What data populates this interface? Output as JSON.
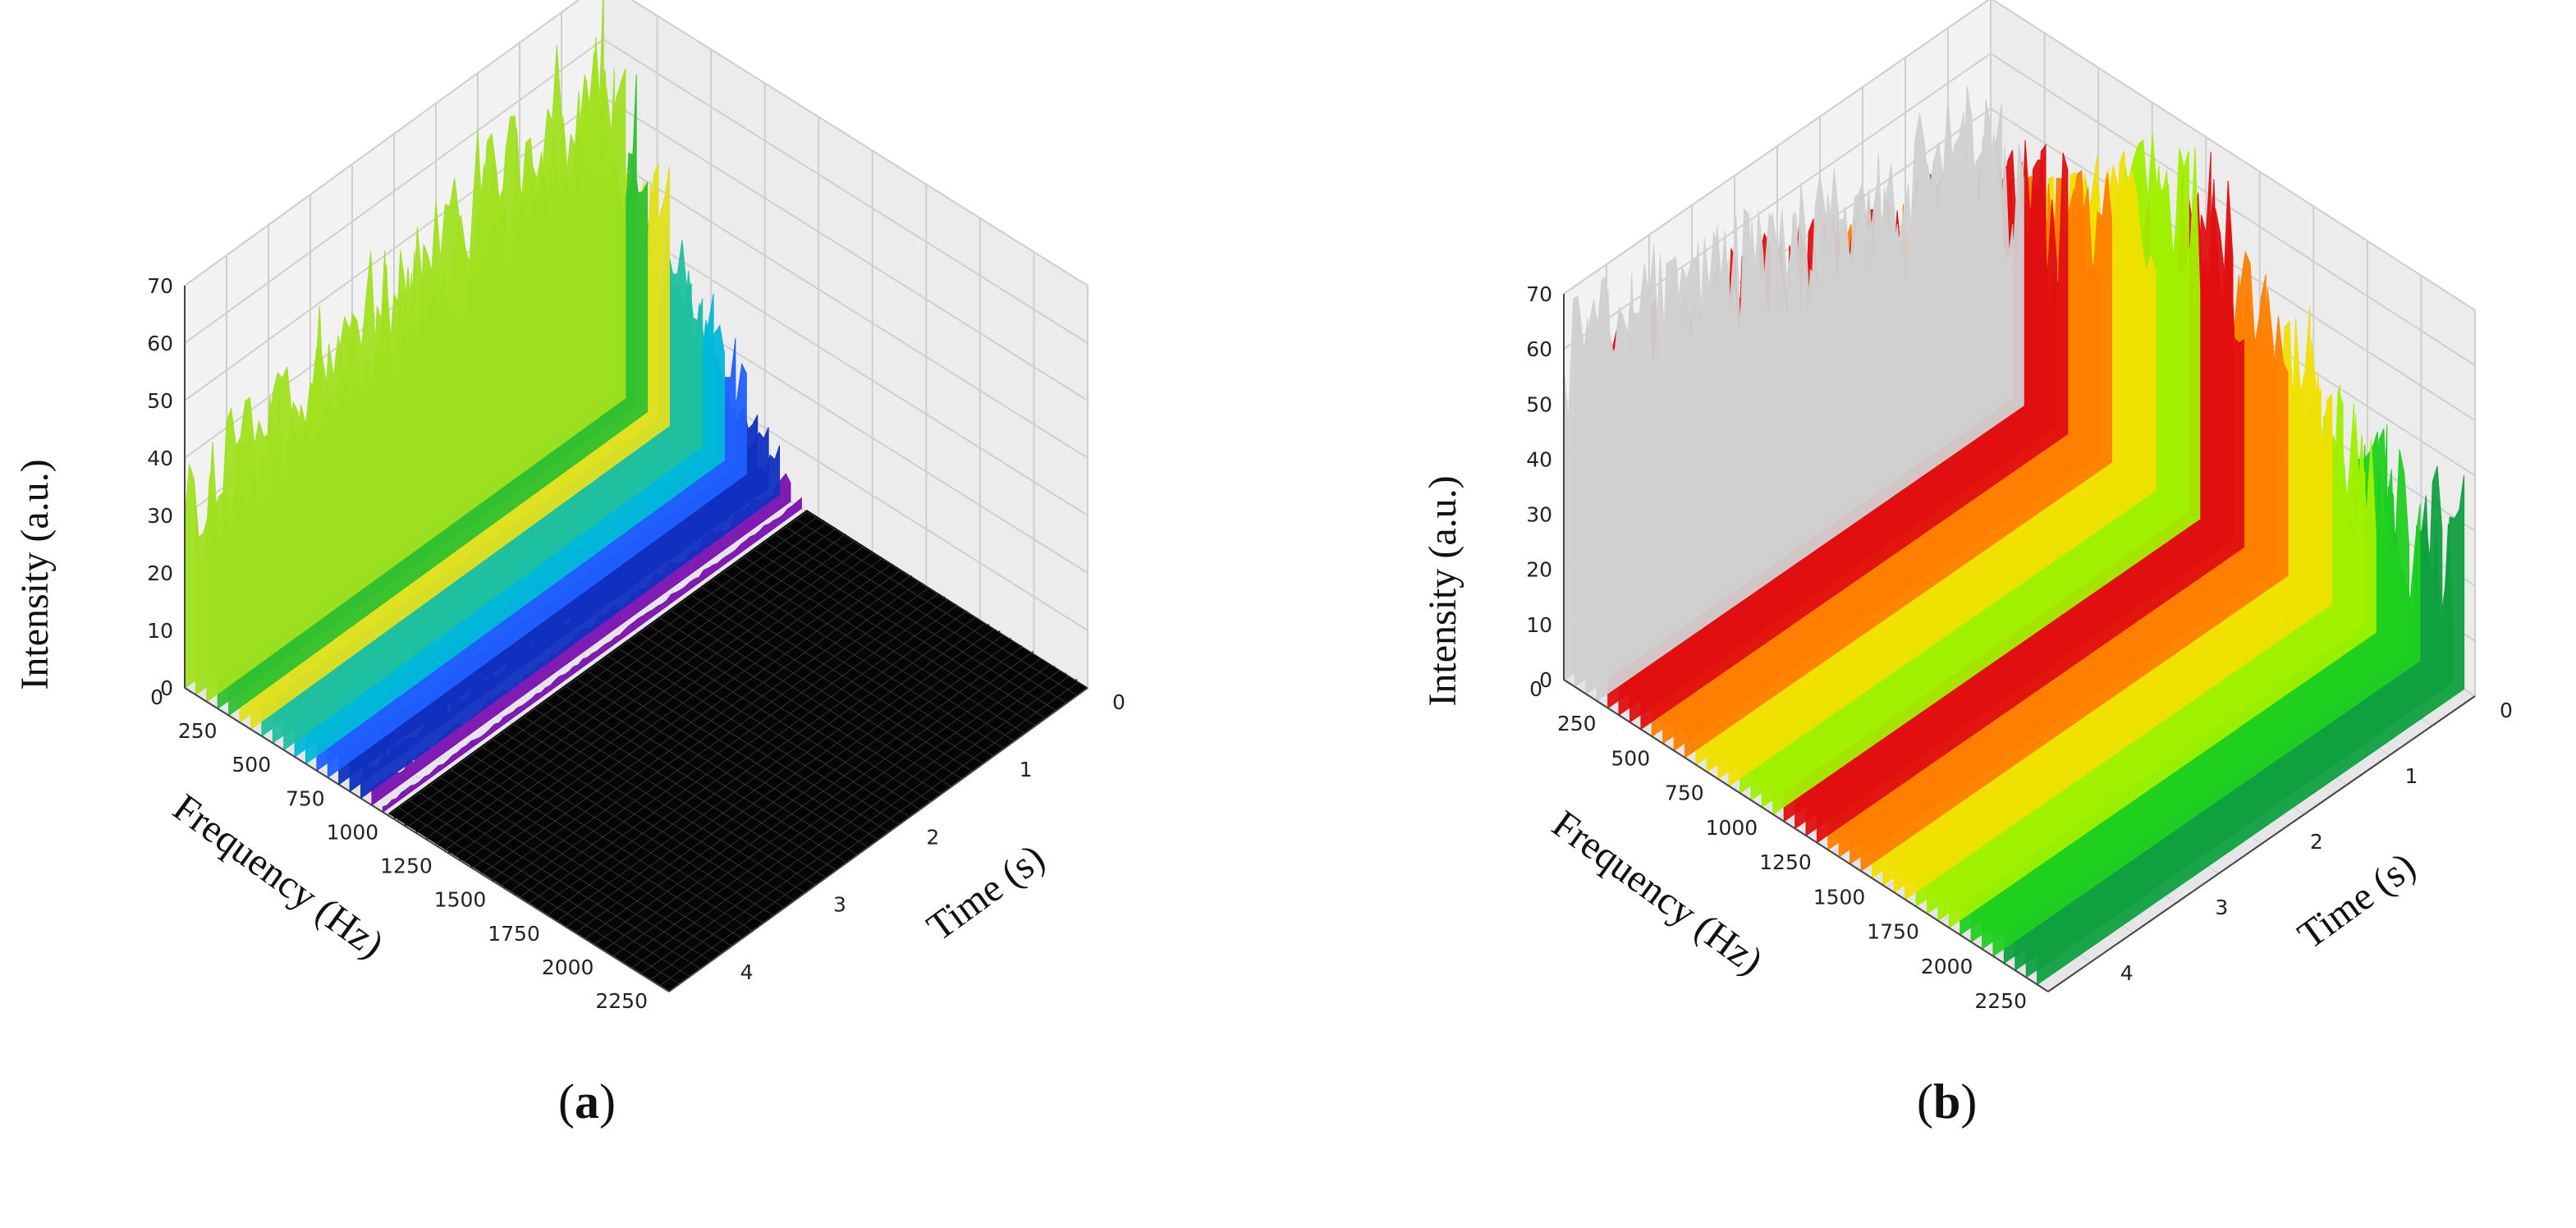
{
  "chart_data": [
    {
      "type": "surface3d",
      "panel": "a",
      "caption": "a",
      "zlabel": "Intensity (a.u.)",
      "xlabel": "Frequency (Hz)",
      "ylabel": "Time (s)",
      "zticks": [
        "0",
        "10",
        "20",
        "30",
        "40",
        "50",
        "60",
        "70"
      ],
      "xticks": [
        "0",
        "250",
        "500",
        "750",
        "1000",
        "1250",
        "1500",
        "1750",
        "2000",
        "2250"
      ],
      "yticks": [
        "0",
        "1",
        "2",
        "3",
        "4"
      ],
      "zlim": [
        0,
        70
      ],
      "xlim": [
        0,
        2250
      ],
      "ylim": [
        0,
        4.5
      ],
      "colors": [
        "#00b8d8",
        "#2060ff",
        "#1030c0",
        "#7a10b0",
        "#30c030",
        "#a0e020",
        "#e0e020",
        "#20c0a0"
      ],
      "description_values": {
        "peak_band_frequency_hz": [
          0,
          250
        ],
        "peak_intensity": 65,
        "background_intensity": 0
      }
    },
    {
      "type": "surface3d",
      "panel": "b",
      "caption": "b",
      "zlabel": "Intensity (a.u.)",
      "xlabel": "Frequency (Hz)",
      "ylabel": "Time (s)",
      "zticks": [
        "0",
        "10",
        "20",
        "30",
        "40",
        "50",
        "60",
        "70"
      ],
      "xticks": [
        "0",
        "250",
        "500",
        "750",
        "1000",
        "1250",
        "1500",
        "1750",
        "2000",
        "2250"
      ],
      "yticks": [
        "0",
        "1",
        "2",
        "3",
        "4"
      ],
      "zlim": [
        0,
        70
      ],
      "xlim": [
        0,
        2250
      ],
      "ylim": [
        0,
        4.5
      ],
      "colors": [
        "#d0d0d0",
        "#e01010",
        "#ff8000",
        "#f0e000",
        "#a0f000",
        "#20d020",
        "#10a040"
      ],
      "description_values": {
        "peak_intensity": 68,
        "background_intensity": 30
      }
    }
  ]
}
